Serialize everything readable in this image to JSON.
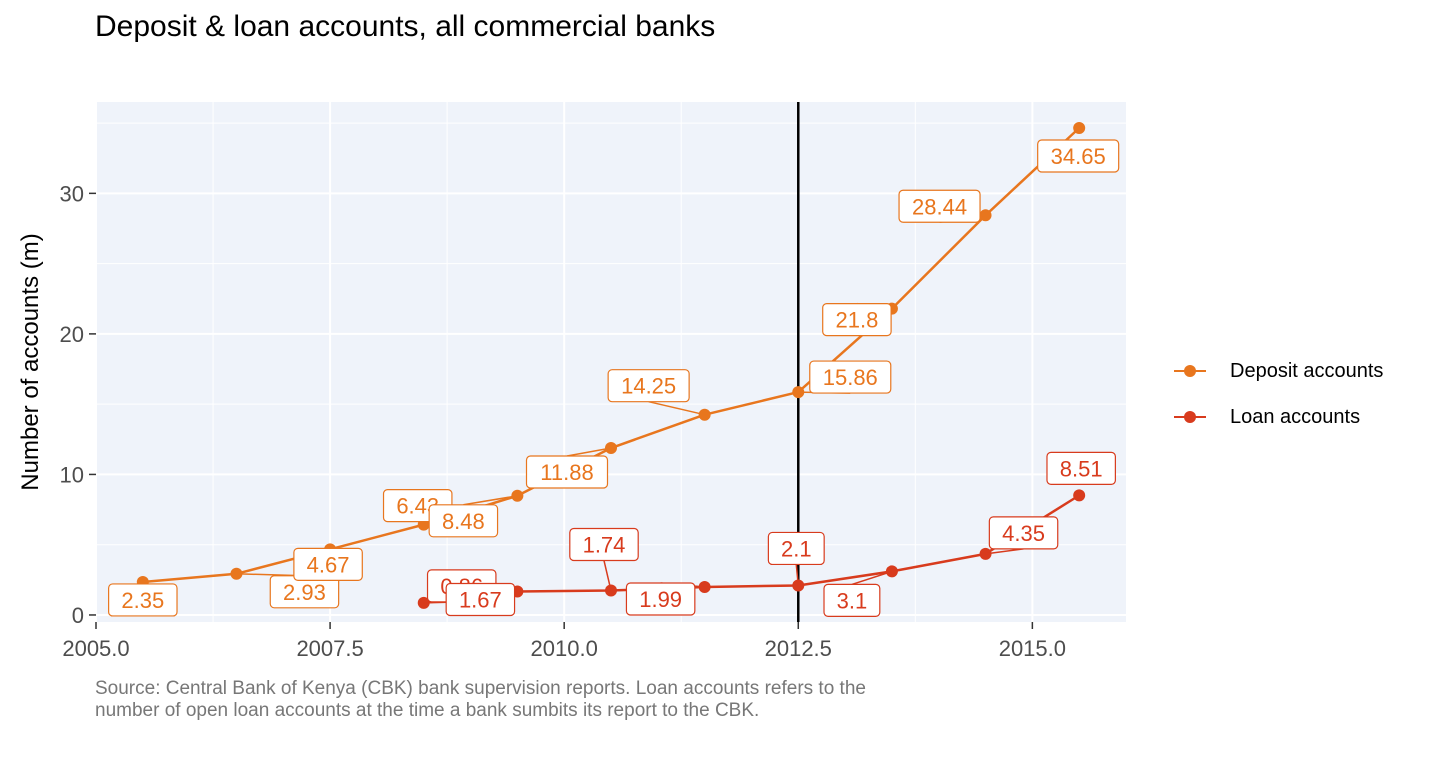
{
  "chart_data": {
    "type": "line",
    "title": "Deposit & loan accounts, all commercial banks",
    "xlabel": "",
    "ylabel": "Number of accounts (m)",
    "xlim": [
      2005.0,
      2016.0
    ],
    "ylim": [
      -0.5,
      36.5
    ],
    "x_ticks": [
      2005.0,
      2007.5,
      2010.0,
      2012.5,
      2015.0
    ],
    "x_tick_labels": [
      "2005.0",
      "2007.5",
      "2010.0",
      "2012.5",
      "2015.0"
    ],
    "y_ticks": [
      0,
      10,
      20,
      30
    ],
    "y_tick_labels": [
      "0",
      "10",
      "20",
      "30"
    ],
    "grid": true,
    "background": "#eff3fa",
    "vline": 2012.5,
    "legend_position": "right",
    "series": [
      {
        "name": "Deposit accounts",
        "color": "#e8761e",
        "x": [
          2005.5,
          2006.5,
          2007.5,
          2008.5,
          2009.5,
          2010.5,
          2011.5,
          2012.5,
          2013.5,
          2014.5,
          2015.5
        ],
        "values": [
          2.35,
          2.93,
          4.67,
          6.43,
          8.48,
          11.88,
          14.25,
          15.86,
          21.8,
          28.44,
          34.65
        ],
        "labels": [
          "2.35",
          "2.93",
          "4.67",
          "6.43",
          "8.48",
          "11.88",
          "14.25",
          "15.86",
          "21.8",
          "28.44",
          "34.65"
        ]
      },
      {
        "name": "Loan accounts",
        "color": "#d83b1d",
        "x": [
          2008.5,
          2009.5,
          2010.5,
          2011.5,
          2012.5,
          2013.5,
          2014.5,
          2015.5
        ],
        "values": [
          0.86,
          1.67,
          1.74,
          1.99,
          2.1,
          3.1,
          4.35,
          8.51
        ],
        "labels": [
          "0.86",
          "1.67",
          "1.74",
          "1.99",
          "2.1",
          "3.1",
          "4.35",
          "8.51"
        ]
      }
    ]
  },
  "caption": "Source: Central Bank of Kenya (CBK) bank supervision reports. Loan accounts refers to the number of open loan accounts at the time a bank sumbits its report to the CBK."
}
